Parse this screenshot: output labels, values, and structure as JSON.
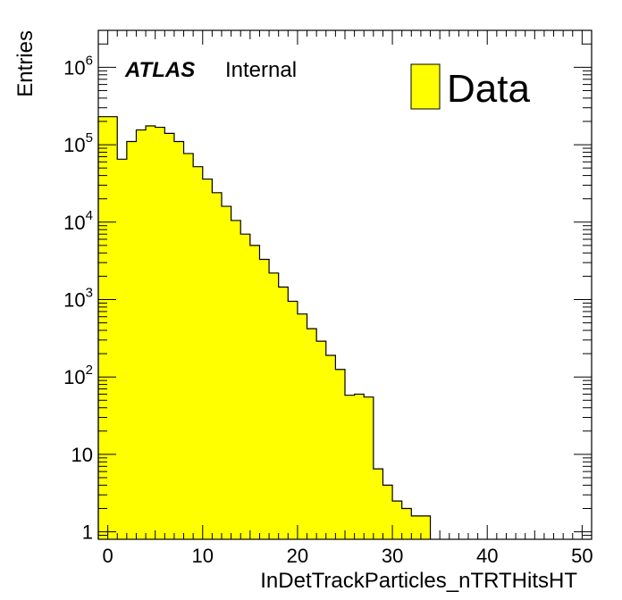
{
  "chart_data": {
    "type": "bar",
    "xlabel": "InDetTrackParticles_nTRTHitsHT",
    "ylabel": "Entries",
    "xlim": [
      -1,
      51
    ],
    "ylim": [
      0.8,
      3000000
    ],
    "yscale": "log",
    "bin_width": 1,
    "x_ticks": [
      "0",
      "10",
      "20",
      "30",
      "40",
      "50"
    ],
    "y_ticks": [
      {
        "base": "1",
        "exp": ""
      },
      {
        "base": "10",
        "exp": ""
      },
      {
        "base": "10",
        "exp": "2"
      },
      {
        "base": "10",
        "exp": "3"
      },
      {
        "base": "10",
        "exp": "4"
      },
      {
        "base": "10",
        "exp": "5"
      },
      {
        "base": "10",
        "exp": "6"
      }
    ],
    "grid": false,
    "legend_position": "top-right",
    "series": [
      {
        "name": "Data",
        "color": "#ffff00",
        "x": [
          -1,
          0,
          1,
          2,
          3,
          4,
          5,
          6,
          7,
          8,
          9,
          10,
          11,
          12,
          13,
          14,
          15,
          16,
          17,
          18,
          19,
          20,
          21,
          22,
          23,
          24,
          25,
          26,
          27,
          28,
          29,
          30,
          31,
          32,
          33
        ],
        "values": [
          230000,
          230000,
          65000,
          110000,
          155000,
          175000,
          168000,
          140000,
          110000,
          77000,
          52000,
          36000,
          24000,
          16000,
          10500,
          7000,
          5000,
          3300,
          2200,
          1450,
          950,
          650,
          420,
          290,
          190,
          125,
          58,
          60,
          55,
          6.5,
          4,
          2.5,
          2,
          1.6,
          1.6
        ]
      }
    ],
    "annotations": {
      "atlas": "ATLAS",
      "status": "Internal"
    }
  }
}
